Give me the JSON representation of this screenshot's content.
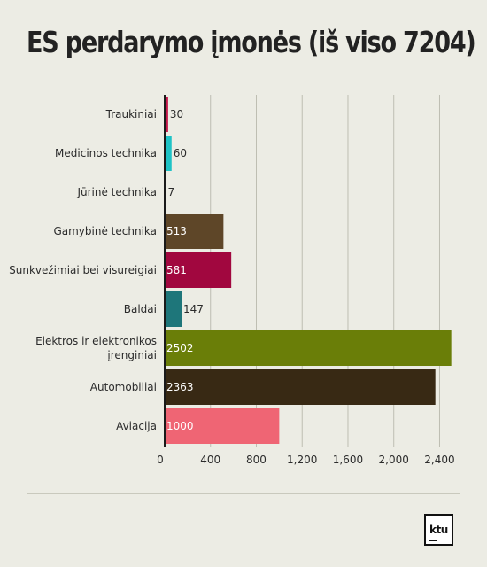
{
  "chart_data": {
    "type": "bar",
    "orientation": "horizontal",
    "title": "ES perdarymo įmonės (iš viso 7204)",
    "categories": [
      [
        "Traukiniai"
      ],
      [
        "Medicinos technika"
      ],
      [
        "Jūrinė technika"
      ],
      [
        "Gamybinė technika"
      ],
      [
        "Sunkvežimiai bei visureigiai"
      ],
      [
        "Baldai"
      ],
      [
        "Elektros ir elektronikos",
        "įrenginiai"
      ],
      [
        "Automobiliai"
      ],
      [
        "Aviacija"
      ]
    ],
    "values": [
      30,
      60,
      7,
      513,
      581,
      147,
      2502,
      2363,
      1000
    ],
    "colors": [
      "#c4164a",
      "#1ec3c6",
      "#c8c400",
      "#5e4628",
      "#a1073f",
      "#1e767a",
      "#6a7e08",
      "#382914",
      "#ef6574"
    ],
    "xlim": [
      0,
      2520
    ],
    "xticks": [
      0,
      400,
      800,
      1200,
      1600,
      2000,
      2400
    ],
    "xtick_labels": [
      "0",
      "400",
      "800",
      "1,200",
      "1,600",
      "2,000",
      "2,400"
    ],
    "grid": true,
    "legend": "none"
  },
  "logo": {
    "text": "ktu",
    "icon": "ktu-logo-icon"
  }
}
